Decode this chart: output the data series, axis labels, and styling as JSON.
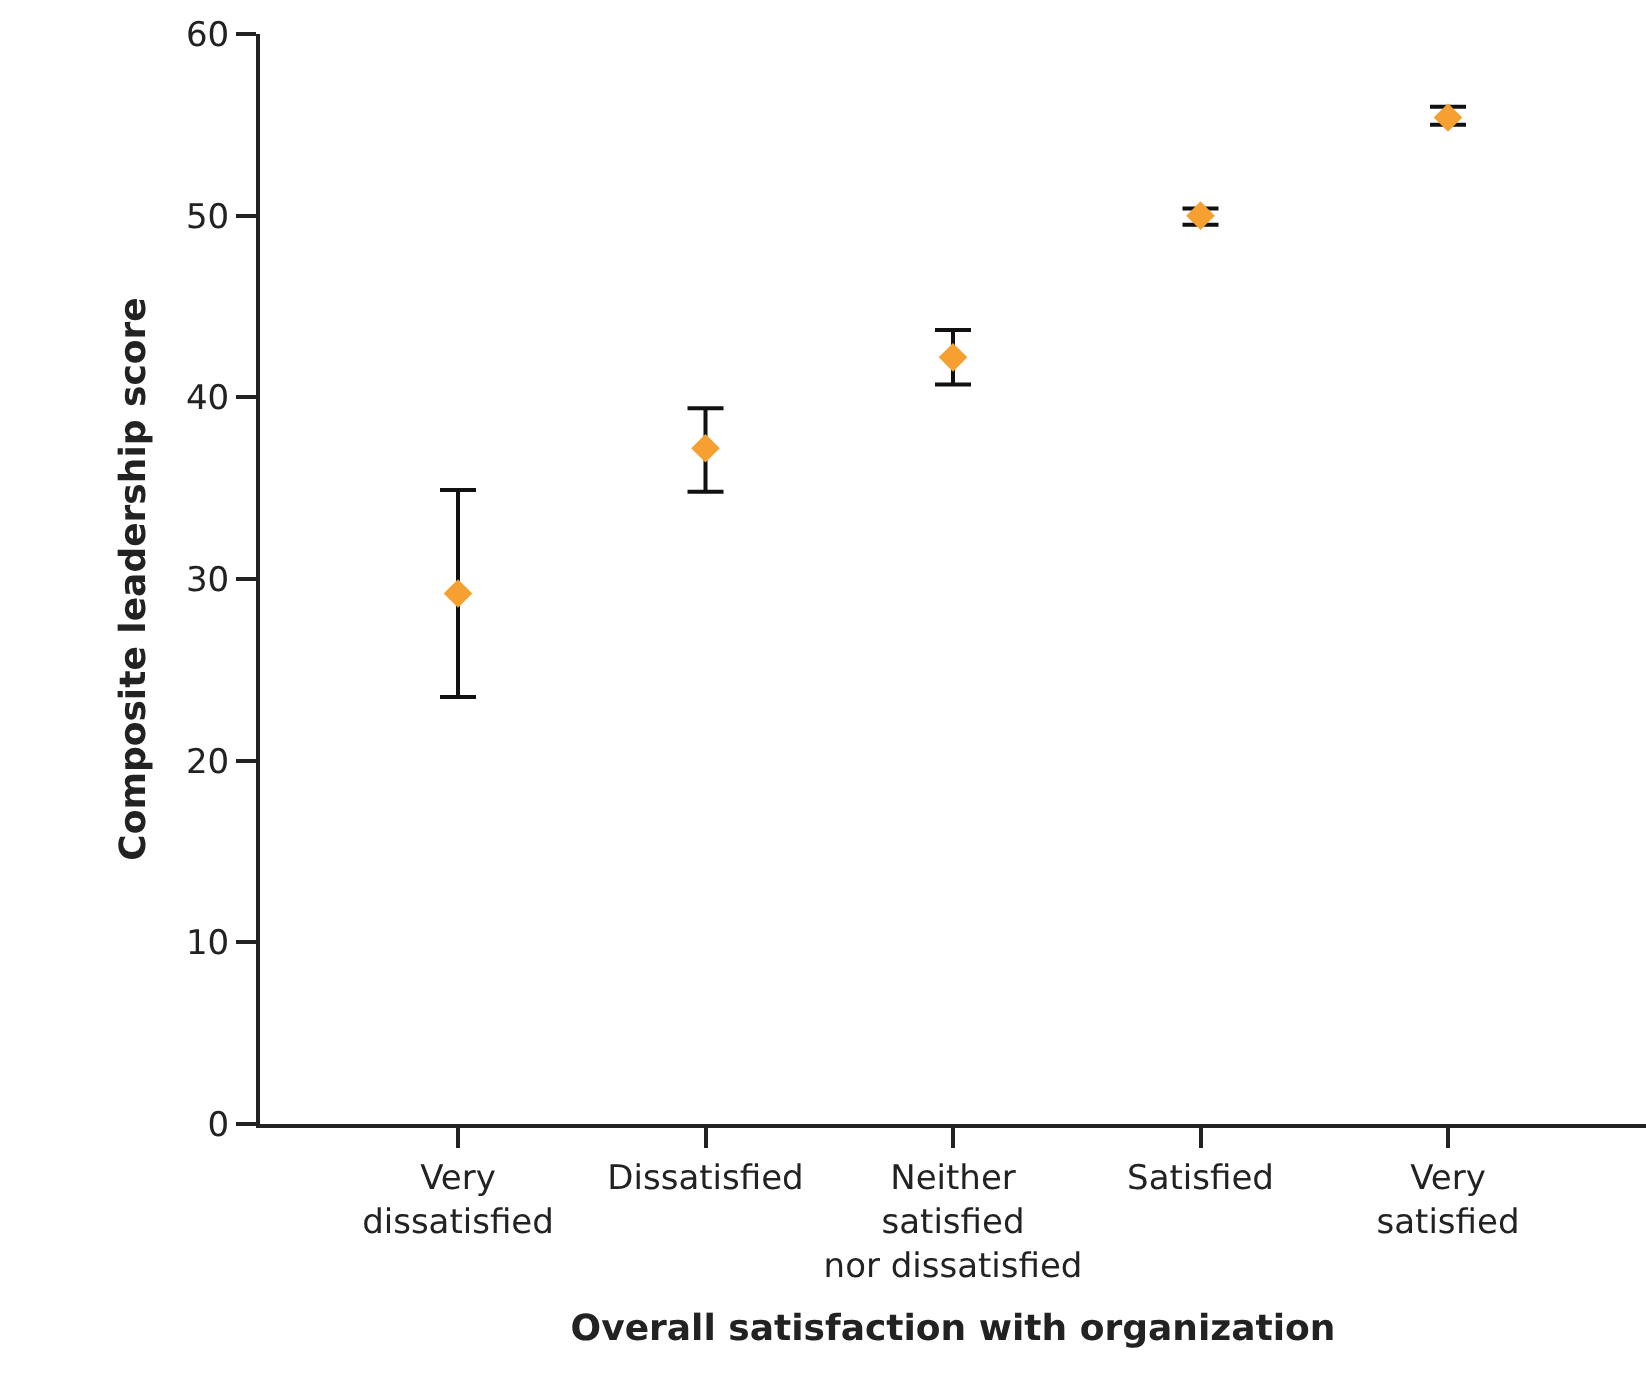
{
  "chart_data": {
    "type": "scatter",
    "xlabel": "Overall satisfaction with organization",
    "ylabel": "Composite leadership score",
    "categories": [
      "Very dissatisfied",
      "Dissatisfied",
      "Neither satisfied nor dissatisfied",
      "Satisfied",
      "Very satisfied"
    ],
    "series": [
      {
        "color": "#f5a031",
        "values": [
          29.2,
          37.2,
          42.2,
          50.0,
          55.4
        ],
        "errors": [
          [
            23.5,
            34.9
          ],
          [
            34.8,
            39.4
          ],
          [
            40.7,
            43.7
          ],
          [
            49.5,
            50.4
          ],
          [
            55.0,
            56.0
          ]
        ]
      }
    ],
    "ylim": [
      0,
      60
    ],
    "yticks": [
      0,
      10,
      20,
      30,
      40,
      50,
      60
    ],
    "marker": "diamond"
  }
}
